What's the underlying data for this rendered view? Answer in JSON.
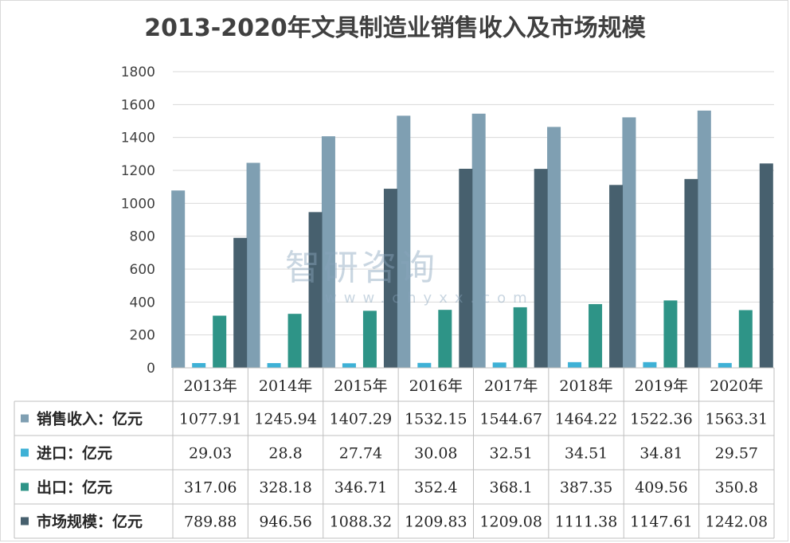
{
  "chart_data": {
    "type": "bar",
    "title": "2013-2020年文具制造业销售收入及市场规模",
    "categories": [
      "2013年",
      "2014年",
      "2015年",
      "2016年",
      "2017年",
      "2018年",
      "2019年",
      "2020年"
    ],
    "series": [
      {
        "name": "销售收入：亿元",
        "color": "#7f9fb2",
        "values": [
          1077.91,
          1245.94,
          1407.29,
          1532.15,
          1544.67,
          1464.22,
          1522.36,
          1563.31
        ]
      },
      {
        "name": "进口：亿元",
        "color": "#3eb1d6",
        "values": [
          29.03,
          28.8,
          27.74,
          30.08,
          32.51,
          34.51,
          34.81,
          29.57
        ]
      },
      {
        "name": "出口：亿元",
        "color": "#2e9487",
        "values": [
          317.06,
          328.18,
          346.71,
          352.4,
          368.1,
          387.35,
          409.56,
          350.8
        ]
      },
      {
        "name": "市场规模：亿元",
        "color": "#47606e",
        "values": [
          789.88,
          946.56,
          1088.32,
          1209.83,
          1209.08,
          1111.38,
          1147.61,
          1242.08
        ]
      }
    ],
    "table_labels": [
      [
        "1077.91",
        "1245.94",
        "1407.29",
        "1532.15",
        "1544.67",
        "1464.22",
        "1522.36",
        "1563.31"
      ],
      [
        "29.03",
        "28.8",
        "27.74",
        "30.08",
        "32.51",
        "34.51",
        "34.81",
        "29.57"
      ],
      [
        "317.06",
        "328.18",
        "346.71",
        "352.4",
        "368.1",
        "387.35",
        "409.56",
        "350.8"
      ],
      [
        "789.88",
        "946.56",
        "1088.32",
        "1209.83",
        "1209.08",
        "1111.38",
        "1147.61",
        "1242.08"
      ]
    ],
    "ylim": [
      0,
      1800
    ],
    "yticks": [
      0,
      200,
      400,
      600,
      800,
      1000,
      1200,
      1400,
      1600,
      1800
    ],
    "grid": true,
    "legend": "data-table"
  },
  "watermark": {
    "brand": "智研咨询",
    "url": "www.chyxx.com"
  }
}
